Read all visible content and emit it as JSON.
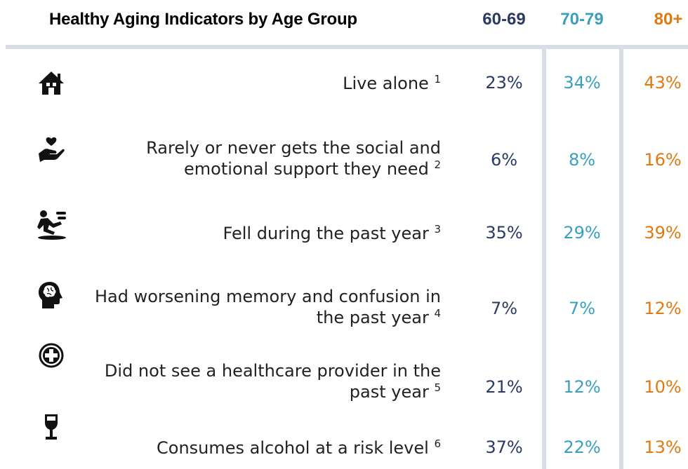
{
  "chart_data": {
    "type": "table",
    "title": "Healthy Aging Indicators by Age Group",
    "columns": [
      {
        "label": "60-69",
        "color": "#2a3a64"
      },
      {
        "label": "70-79",
        "color": "#3a9fbf"
      },
      {
        "label": "80+",
        "color": "#e07a10"
      }
    ],
    "rows": [
      {
        "icon": "house-icon",
        "label": "Live alone",
        "note": "1",
        "values": [
          "23%",
          "34%",
          "43%"
        ]
      },
      {
        "icon": "heart-hand-icon",
        "label": "Rarely or never gets the social and emotional support they need",
        "note": "2",
        "values": [
          "6%",
          "8%",
          "16%"
        ]
      },
      {
        "icon": "person-falling-icon",
        "label": "Fell during the past year",
        "note": "3",
        "values": [
          "35%",
          "29%",
          "39%"
        ]
      },
      {
        "icon": "brain-head-icon",
        "label": "Had worsening memory and confusion in the past year",
        "note": "4",
        "values": [
          "7%",
          "7%",
          "12%"
        ]
      },
      {
        "icon": "medical-plus-icon",
        "label": "Did not see a healthcare provider in the past year",
        "note": "5",
        "values": [
          "21%",
          "12%",
          "10%"
        ]
      },
      {
        "icon": "wine-glass-icon",
        "label": "Consumes alcohol at a risk level",
        "note": "6",
        "values": [
          "37%",
          "22%",
          "13%"
        ]
      }
    ]
  }
}
